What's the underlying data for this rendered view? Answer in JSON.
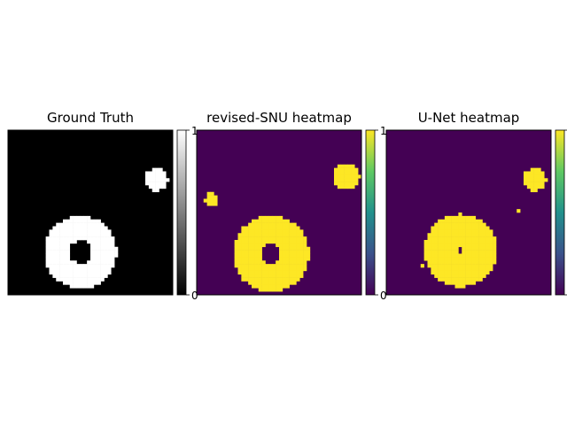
{
  "chart_data": [
    {
      "type": "heatmap",
      "title": "Ground Truth",
      "colormap": "gray",
      "colorbar": {
        "min": 0,
        "max": 1,
        "ticks": [
          "0",
          "1"
        ]
      },
      "grid": false,
      "regions": [
        {
          "shape": "ring",
          "center": [
            0.44,
            0.74
          ],
          "outer_radius": 0.22,
          "inner_radius": 0.07,
          "value": 1
        },
        {
          "shape": "blob",
          "center": [
            0.9,
            0.3
          ],
          "radius": 0.07,
          "value": 1
        }
      ],
      "background_value": 0
    },
    {
      "type": "heatmap",
      "title": "revised-SNU heatmap",
      "colormap": "viridis",
      "colorbar": {
        "min": 0,
        "max": 1,
        "ticks": [
          "0",
          "1"
        ]
      },
      "grid": false,
      "regions": [
        {
          "shape": "ring",
          "center": [
            0.45,
            0.75
          ],
          "outer_radius": 0.23,
          "inner_radius": 0.06,
          "value": 1
        },
        {
          "shape": "blob",
          "center": [
            0.91,
            0.28
          ],
          "radius": 0.08,
          "value": 1
        },
        {
          "shape": "blob",
          "center": [
            0.09,
            0.42
          ],
          "radius": 0.04,
          "value": 1
        }
      ],
      "background_value": 0
    },
    {
      "type": "heatmap",
      "title": "U-Net heatmap",
      "colormap": "viridis",
      "colorbar": {
        "min": 0,
        "max": 1,
        "ticks": [
          "0",
          "1"
        ]
      },
      "grid": false,
      "regions": [
        {
          "shape": "ring",
          "center": [
            0.45,
            0.73
          ],
          "outer_radius": 0.22,
          "inner_radius": 0.02,
          "value": 1
        },
        {
          "shape": "blob",
          "center": [
            0.9,
            0.3
          ],
          "radius": 0.07,
          "value": 1
        },
        {
          "shape": "blob",
          "center": [
            0.8,
            0.49
          ],
          "radius": 0.012,
          "value": 1
        },
        {
          "shape": "blob",
          "center": [
            0.21,
            0.82
          ],
          "radius": 0.012,
          "value": 1
        }
      ],
      "background_value": 0
    }
  ],
  "colors": {
    "black": "#000000",
    "white": "#ffffff",
    "viridis_low": "#440154",
    "viridis_high": "#fde725"
  }
}
